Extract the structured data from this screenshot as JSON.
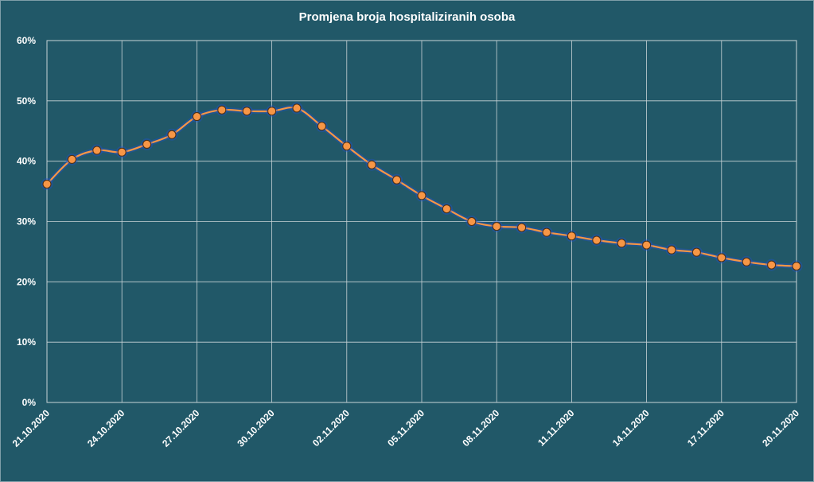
{
  "chart_data": {
    "type": "line",
    "title": "Promjena broja hospitaliziranih osoba",
    "xlabel": "",
    "ylabel": "",
    "x_tick_labels": [
      "21.10.2020",
      "24.10.2020",
      "27.10.2020",
      "30.10.2020",
      "02.11.2020",
      "05.11.2020",
      "08.11.2020",
      "11.11.2020",
      "14.11.2020",
      "17.11.2020",
      "20.11.2020"
    ],
    "y_tick_labels": [
      "0%",
      "10%",
      "20%",
      "30%",
      "40%",
      "50%",
      "60%"
    ],
    "ylim": [
      0,
      60
    ],
    "y_unit": "%",
    "grid": true,
    "legend": "none",
    "colors": {
      "background": "#215868",
      "grid": "#c8d3d6",
      "line": "#f79646",
      "marker_fill": "#f79646",
      "marker_stroke": "#4f2f10",
      "glow": "#1f4fd6",
      "text": "#ffffff"
    },
    "series": [
      {
        "x": [
          "21.10.2020",
          "22.10.2020",
          "23.10.2020",
          "24.10.2020",
          "25.10.2020",
          "26.10.2020",
          "27.10.2020",
          "28.10.2020",
          "29.10.2020",
          "30.10.2020",
          "31.10.2020",
          "01.11.2020",
          "02.11.2020",
          "03.11.2020",
          "04.11.2020",
          "05.11.2020",
          "06.11.2020",
          "07.11.2020",
          "08.11.2020",
          "09.11.2020",
          "10.11.2020",
          "11.11.2020",
          "12.11.2020",
          "13.11.2020",
          "14.11.2020",
          "15.11.2020",
          "16.11.2020",
          "17.11.2020",
          "18.11.2020",
          "19.11.2020",
          "20.11.2020"
        ],
        "values": [
          36.2,
          40.3,
          41.8,
          41.5,
          42.8,
          44.4,
          47.4,
          48.5,
          48.3,
          48.3,
          48.8,
          45.8,
          42.5,
          39.4,
          36.9,
          34.3,
          32.1,
          30.0,
          29.2,
          29.0,
          28.2,
          27.6,
          26.9,
          26.4,
          26.1,
          25.3,
          24.9,
          24.0,
          23.3,
          22.8,
          22.6
        ]
      }
    ]
  }
}
